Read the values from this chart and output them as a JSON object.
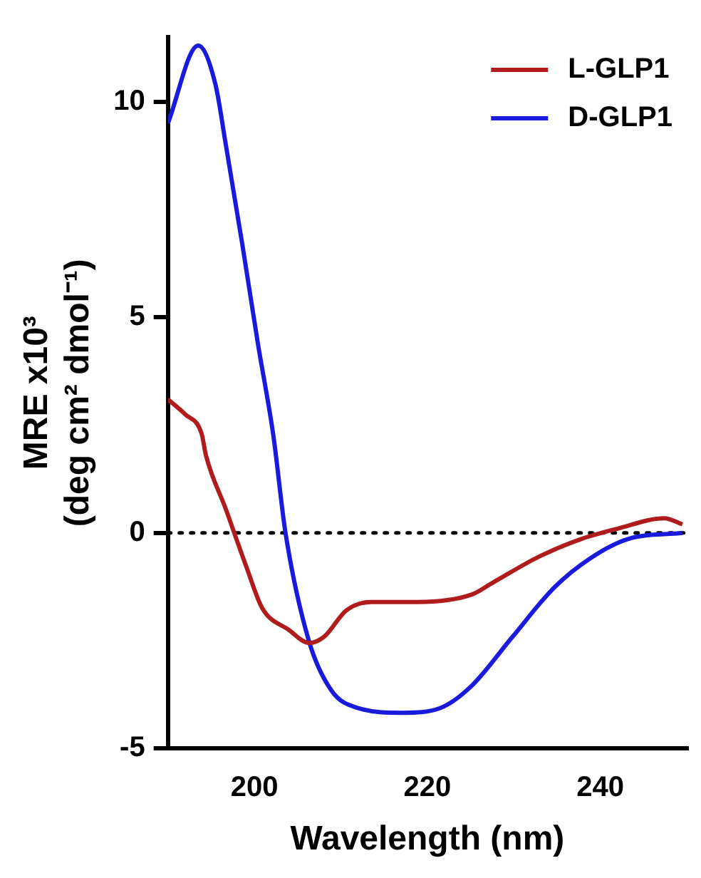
{
  "chart_data": {
    "type": "line",
    "xlabel": "Wavelength (nm)",
    "ylabel": "MRE x10³\n(deg cm² dmol⁻¹)",
    "xlim": [
      190,
      250
    ],
    "xticks": [
      200,
      220,
      240
    ],
    "ylim": [
      -5,
      11.5
    ],
    "yticks": [
      -5,
      0,
      5,
      10
    ],
    "grid": false,
    "legend": "top right",
    "marker": "none",
    "line_style": "solid",
    "ref_lines": [
      {
        "axis": "y",
        "value": 0,
        "color": "#000000",
        "line_style": "dotted"
      }
    ],
    "series": [
      {
        "name": "L-GLP1",
        "color": "#b01c1c",
        "x": [
          190,
          192,
          193.9,
          194.4,
          196.7,
          199.1,
          200.9,
          204,
          206.3,
          208.1,
          210.6,
          213.5,
          218.9,
          225.1,
          227.5,
          232.9,
          237.8,
          242,
          247.4,
          249.5
        ],
        "values": [
          3.1,
          2.75,
          2.3,
          1.8,
          0.55,
          -0.8,
          -1.74,
          -2.25,
          -2.55,
          -2.4,
          -1.8,
          -1.6,
          -1.6,
          -1.43,
          -1.16,
          -0.55,
          -0.14,
          0.1,
          0.34,
          0.2
        ]
      },
      {
        "name": "D-GLP1",
        "color": "#1a1adc",
        "x": [
          190,
          193.5,
          195.5,
          196.7,
          198.6,
          200.4,
          202.2,
          203.6,
          206.3,
          208.9,
          211.8,
          217.2,
          221.5,
          225.1,
          229.8,
          234.7,
          238.9,
          243.2,
          249.5
        ],
        "values": [
          9.5,
          11.3,
          10.4,
          9.0,
          6.7,
          4.4,
          2.25,
          0,
          -2.5,
          -3.65,
          -4.05,
          -4.17,
          -4.06,
          -3.55,
          -2.42,
          -1.26,
          -0.58,
          -0.14,
          0
        ]
      }
    ]
  }
}
